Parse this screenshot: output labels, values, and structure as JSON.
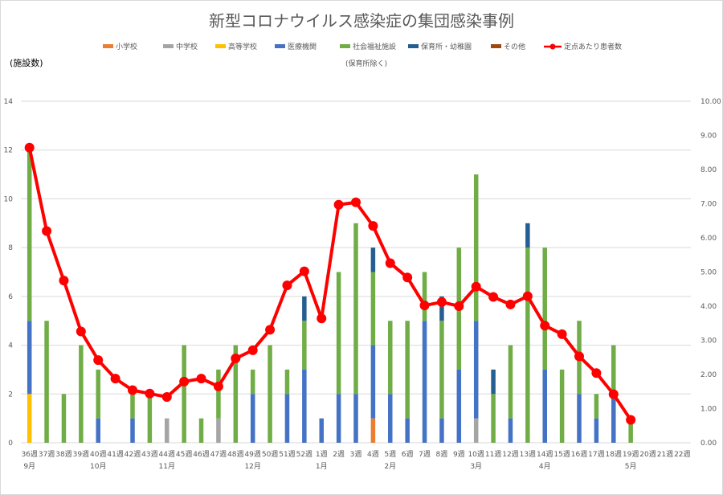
{
  "chart_data": {
    "type": "bar",
    "title": "新型コロナウイルス感染症の集団感染事例",
    "ylabel": "(施設数)",
    "ylim": [
      0,
      14
    ],
    "y2lim": [
      0,
      10
    ],
    "grid": true,
    "legend_position": "top",
    "categories": [
      "36週",
      "37週",
      "38週",
      "39週",
      "40週",
      "41週",
      "42週",
      "43週",
      "44週",
      "45週",
      "46週",
      "47週",
      "48週",
      "49週",
      "50週",
      "51週",
      "52週",
      "1週",
      "2週",
      "3週",
      "4週",
      "5週",
      "6週",
      "7週",
      "8週",
      "9週",
      "10週",
      "11週",
      "12週",
      "13週",
      "14週",
      "15週",
      "16週",
      "17週",
      "18週",
      "19週",
      "20週",
      "21週",
      "22週"
    ],
    "month_labels": [
      {
        "label": "9月",
        "index": 0
      },
      {
        "label": "10月",
        "index": 4
      },
      {
        "label": "11月",
        "index": 8
      },
      {
        "label": "12月",
        "index": 13
      },
      {
        "label": "1月",
        "index": 17
      },
      {
        "label": "2月",
        "index": 21
      },
      {
        "label": "3月",
        "index": 26
      },
      {
        "label": "4月",
        "index": 30
      },
      {
        "label": "5月",
        "index": 35
      }
    ],
    "y_ticks": [
      "0",
      "2",
      "4",
      "6",
      "8",
      "10",
      "12",
      "14"
    ],
    "y2_ticks": [
      "0.00",
      "1.00",
      "2.00",
      "3.00",
      "4.00",
      "5.00",
      "6.00",
      "7.00",
      "8.00",
      "9.00",
      "10.00"
    ],
    "series": [
      {
        "name": "小学校",
        "color": "#ED7D31",
        "values": [
          0,
          0,
          0,
          0,
          0,
          0,
          0,
          0,
          0,
          0,
          0,
          0,
          0,
          0,
          0,
          0,
          0,
          0,
          0,
          0,
          1,
          0,
          0,
          0,
          0,
          0,
          0,
          0,
          0,
          0,
          0,
          0,
          0,
          0,
          0,
          0,
          0,
          0,
          0
        ]
      },
      {
        "name": "中学校",
        "color": "#A5A5A5",
        "values": [
          0,
          0,
          0,
          0,
          0,
          0,
          0,
          0,
          1,
          0,
          0,
          1,
          0,
          0,
          0,
          0,
          0,
          0,
          0,
          0,
          0,
          0,
          0,
          0,
          0,
          0,
          1,
          0,
          0,
          0,
          0,
          0,
          0,
          0,
          0,
          0,
          0,
          0,
          0
        ]
      },
      {
        "name": "高等学校",
        "color": "#FFC000",
        "values": [
          2,
          0,
          0,
          0,
          0,
          0,
          0,
          0,
          0,
          0,
          0,
          0,
          0,
          0,
          0,
          0,
          0,
          0,
          0,
          0,
          0,
          0,
          0,
          0,
          0,
          0,
          0,
          0,
          0,
          0,
          0,
          0,
          0,
          0,
          0,
          0,
          0,
          0,
          0
        ]
      },
      {
        "name": "医療機関",
        "color": "#4472C4",
        "values": [
          3,
          0,
          0,
          0,
          1,
          0,
          1,
          0,
          0,
          0,
          0,
          0,
          0,
          2,
          0,
          2,
          3,
          1,
          2,
          2,
          3,
          2,
          1,
          5,
          1,
          3,
          4,
          0,
          1,
          0,
          3,
          0,
          2,
          1,
          2,
          0,
          0,
          0,
          0
        ]
      },
      {
        "name": "社会福祉施設",
        "color": "#70AD47",
        "values": [
          7,
          5,
          2,
          4,
          2,
          0,
          1,
          2,
          0,
          4,
          1,
          2,
          4,
          1,
          4,
          1,
          2,
          0,
          5,
          7,
          3,
          3,
          4,
          2,
          4,
          5,
          6,
          2,
          3,
          8,
          5,
          3,
          3,
          1,
          2,
          1,
          0,
          0,
          0
        ]
      },
      {
        "name": "保育所・幼稚園",
        "color": "#255E91",
        "values": [
          0,
          0,
          0,
          0,
          0,
          0,
          0,
          0,
          0,
          0,
          0,
          0,
          0,
          0,
          0,
          0,
          1,
          0,
          0,
          0,
          1,
          0,
          0,
          0,
          1,
          0,
          0,
          1,
          0,
          1,
          0,
          0,
          0,
          0,
          0,
          0,
          0,
          0,
          0
        ]
      },
      {
        "name": "その他",
        "color": "#9E480E",
        "values": [
          0,
          0,
          0,
          0,
          0,
          0,
          0,
          0,
          0,
          0,
          0,
          0,
          0,
          0,
          0,
          0,
          0,
          0,
          0,
          0,
          0,
          0,
          0,
          0,
          0,
          0,
          0,
          0,
          0,
          0,
          0,
          0,
          0,
          0,
          0,
          0,
          0,
          0,
          0
        ]
      }
    ],
    "line": {
      "name": "定点あたり患者数",
      "color": "#FF0000",
      "axis": "right",
      "values": [
        8.64,
        6.2,
        4.75,
        3.26,
        2.42,
        1.88,
        1.54,
        1.44,
        1.34,
        1.79,
        1.88,
        1.65,
        2.47,
        2.71,
        3.31,
        4.61,
        5.02,
        3.64,
        6.97,
        7.04,
        6.35,
        5.26,
        4.84,
        4.02,
        4.12,
        4.0,
        4.57,
        4.27,
        4.05,
        4.29,
        3.43,
        3.18,
        2.53,
        2.04,
        1.42,
        0.67,
        null,
        null,
        null
      ]
    }
  },
  "legend_note": "(保育所除く)"
}
